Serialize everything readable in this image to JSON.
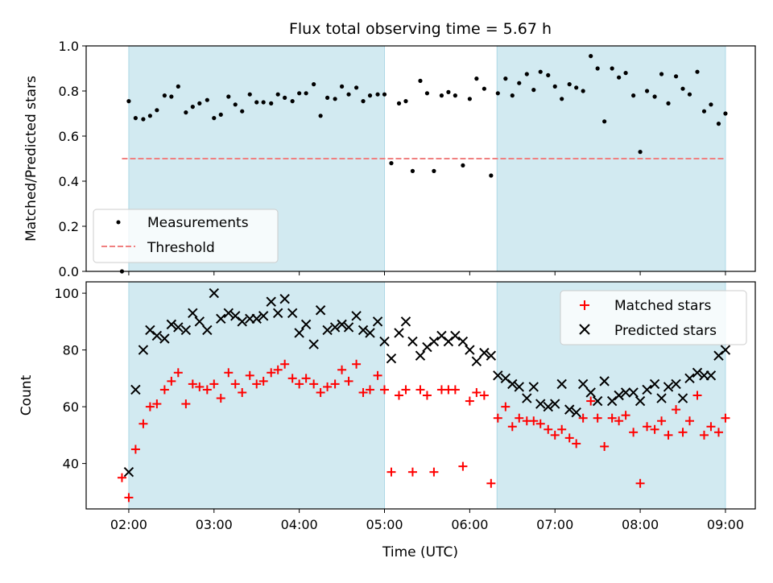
{
  "figure": {
    "title": "Flux total observing time = 5.67 h",
    "xlabel": "Time (UTC)",
    "x_tick_labels": [
      "02:00",
      "03:00",
      "04:00",
      "05:00",
      "06:00",
      "07:00",
      "08:00",
      "09:00"
    ],
    "shaded_intervals_hours": [
      [
        2.0,
        5.0
      ],
      [
        6.32,
        9.0
      ]
    ],
    "shade_color": "#add8e6"
  },
  "chart_data": [
    {
      "type": "scatter",
      "ylabel": "Matched/Predicted stars",
      "ylim": [
        0,
        1
      ],
      "y_tick_labels": [
        "0.0",
        "0.2",
        "0.4",
        "0.6",
        "0.8",
        "1.0"
      ],
      "xlim_hours": [
        1.5,
        9.35
      ],
      "legend": {
        "position": "lower-left",
        "entries": [
          "Measurements",
          "Threshold"
        ]
      },
      "series": [
        {
          "name": "Measurements",
          "color": "#000000",
          "marker": "dot",
          "x_hours": [
            1.92,
            2.0,
            2.08,
            2.17,
            2.25,
            2.33,
            2.42,
            2.5,
            2.58,
            2.67,
            2.75,
            2.83,
            2.92,
            3.0,
            3.08,
            3.17,
            3.25,
            3.33,
            3.42,
            3.5,
            3.58,
            3.67,
            3.75,
            3.83,
            3.92,
            4.0,
            4.08,
            4.17,
            4.25,
            4.33,
            4.42,
            4.5,
            4.58,
            4.67,
            4.75,
            4.83,
            4.92,
            5.0,
            5.08,
            5.17,
            5.25,
            5.33,
            5.42,
            5.5,
            5.58,
            5.67,
            5.75,
            5.83,
            5.92,
            6.0,
            6.08,
            6.17,
            6.25,
            6.33,
            6.42,
            6.5,
            6.58,
            6.67,
            6.75,
            6.83,
            6.92,
            7.0,
            7.08,
            7.17,
            7.25,
            7.33,
            7.42,
            7.5,
            7.58,
            7.67,
            7.75,
            7.83,
            7.92,
            8.0,
            8.08,
            8.17,
            8.25,
            8.33,
            8.42,
            8.5,
            8.58,
            8.67,
            8.75,
            8.83,
            8.92,
            9.0
          ],
          "values": [
            0.0,
            0.755,
            0.68,
            0.675,
            0.69,
            0.715,
            0.78,
            0.775,
            0.82,
            0.705,
            0.73,
            0.745,
            0.76,
            0.68,
            0.695,
            0.775,
            0.74,
            0.71,
            0.785,
            0.75,
            0.75,
            0.745,
            0.785,
            0.77,
            0.755,
            0.79,
            0.79,
            0.83,
            0.69,
            0.77,
            0.765,
            0.82,
            0.785,
            0.815,
            0.755,
            0.78,
            0.785,
            0.785,
            0.48,
            0.745,
            0.755,
            0.445,
            0.845,
            0.79,
            0.445,
            0.78,
            0.795,
            0.78,
            0.47,
            0.765,
            0.855,
            0.81,
            0.425,
            0.79,
            0.855,
            0.78,
            0.835,
            0.875,
            0.805,
            0.885,
            0.87,
            0.82,
            0.765,
            0.83,
            0.815,
            0.8,
            0.955,
            0.9,
            0.665,
            0.9,
            0.86,
            0.88,
            0.78,
            0.53,
            0.8,
            0.775,
            0.875,
            0.745,
            0.865,
            0.81,
            0.785,
            0.885,
            0.71,
            0.74,
            0.655,
            0.7
          ]
        },
        {
          "name": "Threshold",
          "color": "#f08080",
          "style": "dashed",
          "x_range_hours": [
            1.92,
            9.0
          ],
          "value": 0.5
        }
      ]
    },
    {
      "type": "scatter",
      "ylabel": "Count",
      "ylim": [
        24,
        104
      ],
      "y_ticks": [
        40,
        60,
        80,
        100
      ],
      "y_tick_labels": [
        "40",
        "60",
        "80",
        "100"
      ],
      "xlim_hours": [
        1.5,
        9.35
      ],
      "legend": {
        "position": "top-right",
        "entries": [
          "Matched stars",
          "Predicted stars"
        ]
      },
      "series": [
        {
          "name": "Matched stars",
          "color": "#ff0000",
          "marker": "plus",
          "x_hours": [
            1.92,
            2.0,
            2.08,
            2.17,
            2.25,
            2.33,
            2.42,
            2.5,
            2.58,
            2.67,
            2.75,
            2.83,
            2.92,
            3.0,
            3.08,
            3.17,
            3.25,
            3.33,
            3.42,
            3.5,
            3.58,
            3.67,
            3.75,
            3.83,
            3.92,
            4.0,
            4.08,
            4.17,
            4.25,
            4.33,
            4.42,
            4.5,
            4.58,
            4.67,
            4.75,
            4.83,
            4.92,
            5.0,
            5.08,
            5.17,
            5.25,
            5.33,
            5.42,
            5.5,
            5.58,
            5.67,
            5.75,
            5.83,
            5.92,
            6.0,
            6.08,
            6.17,
            6.25,
            6.33,
            6.42,
            6.5,
            6.58,
            6.67,
            6.75,
            6.83,
            6.92,
            7.0,
            7.08,
            7.17,
            7.25,
            7.33,
            7.42,
            7.5,
            7.58,
            7.67,
            7.75,
            7.83,
            7.92,
            8.0,
            8.08,
            8.17,
            8.25,
            8.33,
            8.42,
            8.5,
            8.58,
            8.67,
            8.75,
            8.83,
            8.92,
            9.0
          ],
          "values": [
            35,
            28,
            45,
            54,
            60,
            61,
            66,
            69,
            72,
            61,
            68,
            67,
            66,
            68,
            63,
            72,
            68,
            65,
            71,
            68,
            69,
            72,
            73,
            75,
            70,
            68,
            70,
            68,
            65,
            67,
            68,
            73,
            69,
            75,
            65,
            66,
            71,
            66,
            37,
            64,
            66,
            37,
            66,
            64,
            37,
            66,
            66,
            66,
            39,
            62,
            65,
            64,
            33,
            56,
            60,
            53,
            56,
            55,
            55,
            54,
            52,
            50,
            52,
            49,
            47,
            56,
            62,
            56,
            46,
            56,
            55,
            57,
            51,
            33,
            53,
            52,
            55,
            50,
            59,
            51,
            55,
            64,
            50,
            53,
            51,
            56
          ]
        },
        {
          "name": "Predicted stars",
          "color": "#000000",
          "marker": "cross",
          "x_hours": [
            2.0,
            2.08,
            2.17,
            2.25,
            2.33,
            2.42,
            2.5,
            2.58,
            2.67,
            2.75,
            2.83,
            2.92,
            3.0,
            3.08,
            3.17,
            3.25,
            3.33,
            3.42,
            3.5,
            3.58,
            3.67,
            3.75,
            3.83,
            3.92,
            4.0,
            4.08,
            4.17,
            4.25,
            4.33,
            4.42,
            4.5,
            4.58,
            4.67,
            4.75,
            4.83,
            4.92,
            5.0,
            5.08,
            5.17,
            5.25,
            5.33,
            5.42,
            5.5,
            5.58,
            5.67,
            5.75,
            5.83,
            5.92,
            6.0,
            6.08,
            6.17,
            6.25,
            6.33,
            6.42,
            6.5,
            6.58,
            6.67,
            6.75,
            6.83,
            6.92,
            7.0,
            7.08,
            7.17,
            7.25,
            7.33,
            7.42,
            7.5,
            7.58,
            7.67,
            7.75,
            7.83,
            7.92,
            8.0,
            8.08,
            8.17,
            8.25,
            8.33,
            8.42,
            8.5,
            8.58,
            8.67,
            8.75,
            8.83,
            8.92,
            9.0
          ],
          "values": [
            37,
            66,
            80,
            87,
            85,
            84,
            89,
            88,
            87,
            93,
            90,
            87,
            100,
            91,
            93,
            92,
            90,
            91,
            91,
            92,
            97,
            93,
            98,
            93,
            86,
            89,
            82,
            94,
            87,
            88,
            89,
            88,
            92,
            87,
            86,
            90,
            83,
            77,
            86,
            90,
            83,
            78,
            81,
            83,
            85,
            83,
            85,
            83,
            80,
            76,
            79,
            78,
            71,
            70,
            68,
            67,
            63,
            67,
            61,
            60,
            61,
            68,
            59,
            58,
            68,
            65,
            62,
            69,
            62,
            64,
            65,
            65,
            62,
            66,
            68,
            63,
            67,
            68,
            63,
            70,
            72,
            71,
            71,
            78,
            80
          ]
        }
      ]
    }
  ]
}
